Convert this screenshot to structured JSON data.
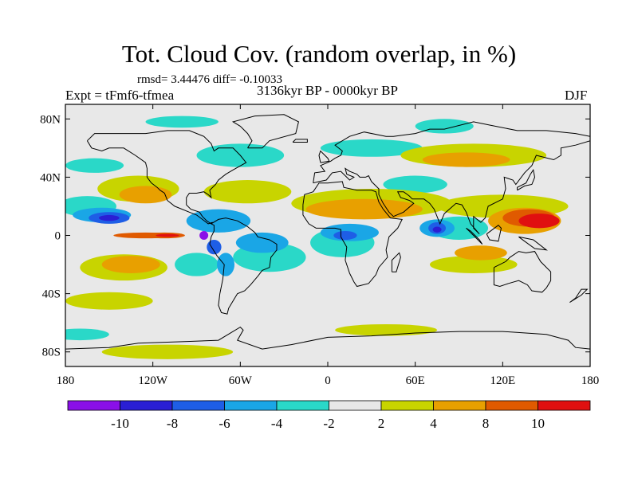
{
  "title": "Tot. Cloud Cov. (random overlap, in %)",
  "stats": "rmsd= 3.44476 diff= -0.10033",
  "experiment": "Expt = tFmf6-tfmea",
  "period": "3136kyr BP - 0000kyr BP",
  "season": "DJF",
  "map": {
    "projection": "cylindrical-equidistant",
    "lon_range": [
      -180,
      180
    ],
    "lat_range": [
      -90,
      90
    ],
    "x_ticks": [
      "180",
      "120W",
      "60W",
      "0",
      "60E",
      "120E",
      "180"
    ],
    "y_ticks": [
      "80N",
      "40N",
      "0",
      "40S",
      "80S"
    ],
    "background_color": "#e8e8e8",
    "coastline_color": "#000000"
  },
  "colorbar": {
    "labels": [
      "-10",
      "-8",
      "-6",
      "-4",
      "-2",
      "2",
      "4",
      "8",
      "10"
    ],
    "colors": [
      "#8a10e8",
      "#2a1fd4",
      "#1e5ee6",
      "#1aa6e6",
      "#2ad8c8",
      "#e8e8e8",
      "#c8d400",
      "#e8a000",
      "#e05a00",
      "#e01010"
    ]
  },
  "anomaly_regions": [
    {
      "level": 2,
      "lon": -130,
      "lat": 32,
      "rx": 28,
      "ry": 9
    },
    {
      "level": 2,
      "lon": -55,
      "lat": 30,
      "rx": 30,
      "ry": 8
    },
    {
      "level": 2,
      "lon": 30,
      "lat": 22,
      "rx": 55,
      "ry": 10
    },
    {
      "level": 2,
      "lon": 120,
      "lat": 20,
      "rx": 45,
      "ry": 8
    },
    {
      "level": 2,
      "lon": 100,
      "lat": 55,
      "rx": 50,
      "ry": 8
    },
    {
      "level": 2,
      "lon": -140,
      "lat": -22,
      "rx": 30,
      "ry": 9
    },
    {
      "level": 2,
      "lon": -150,
      "lat": -45,
      "rx": 30,
      "ry": 6
    },
    {
      "level": 2,
      "lon": 100,
      "lat": -20,
      "rx": 30,
      "ry": 6
    },
    {
      "level": 2,
      "lon": -110,
      "lat": -80,
      "rx": 45,
      "ry": 5
    },
    {
      "level": 2,
      "lon": 40,
      "lat": -65,
      "rx": 35,
      "ry": 4
    },
    {
      "level": 1,
      "lon": -160,
      "lat": 14,
      "rx": 20,
      "ry": 6
    },
    {
      "level": 1,
      "lon": -40,
      "lat": -32,
      "rx": 25,
      "ry": 8
    },
    {
      "level": 1,
      "lon": 60,
      "lat": -42,
      "rx": 35,
      "ry": 6
    },
    {
      "level": 1,
      "lon": 100,
      "lat": 82,
      "rx": 40,
      "ry": 4
    },
    {
      "level": 3,
      "lon": -125,
      "lat": 28,
      "rx": 18,
      "ry": 6
    },
    {
      "level": 3,
      "lon": 25,
      "lat": 18,
      "rx": 40,
      "ry": 7
    },
    {
      "level": 3,
      "lon": 95,
      "lat": 52,
      "rx": 30,
      "ry": 5
    },
    {
      "level": 3,
      "lon": -135,
      "lat": -20,
      "rx": 20,
      "ry": 6
    },
    {
      "level": 3,
      "lon": 105,
      "lat": -12,
      "rx": 18,
      "ry": 5
    },
    {
      "level": 3,
      "lon": 135,
      "lat": 10,
      "rx": 25,
      "ry": 9
    },
    {
      "level": 4,
      "lon": 138,
      "lat": 12,
      "rx": 18,
      "ry": 6
    },
    {
      "level": 4,
      "lon": -125,
      "lat": 0,
      "rx": 22,
      "ry": 2
    },
    {
      "level": 5,
      "lon": 145,
      "lat": 10,
      "rx": 14,
      "ry": 5
    },
    {
      "level": -1,
      "lon": -165,
      "lat": 20,
      "rx": 20,
      "ry": 7
    },
    {
      "level": -1,
      "lon": -60,
      "lat": 55,
      "rx": 30,
      "ry": 8
    },
    {
      "level": -1,
      "lon": 60,
      "lat": 35,
      "rx": 22,
      "ry": 6
    },
    {
      "level": -1,
      "lon": 30,
      "lat": 60,
      "rx": 35,
      "ry": 6
    },
    {
      "level": -1,
      "lon": -160,
      "lat": 48,
      "rx": 20,
      "ry": 5
    },
    {
      "level": -1,
      "lon": -40,
      "lat": -15,
      "rx": 25,
      "ry": 10
    },
    {
      "level": -1,
      "lon": -90,
      "lat": -20,
      "rx": 15,
      "ry": 8
    },
    {
      "level": -1,
      "lon": 90,
      "lat": 5,
      "rx": 20,
      "ry": 8
    },
    {
      "level": -1,
      "lon": 80,
      "lat": 75,
      "rx": 20,
      "ry": 5
    },
    {
      "level": -1,
      "lon": -100,
      "lat": 78,
      "rx": 25,
      "ry": 4
    },
    {
      "level": -1,
      "lon": -170,
      "lat": -68,
      "rx": 20,
      "ry": 4
    },
    {
      "level": -1,
      "lon": 10,
      "lat": -5,
      "rx": 22,
      "ry": 10
    },
    {
      "level": -2,
      "lon": -155,
      "lat": 14,
      "rx": 20,
      "ry": 5
    },
    {
      "level": -2,
      "lon": -75,
      "lat": 10,
      "rx": 22,
      "ry": 8
    },
    {
      "level": -2,
      "lon": -45,
      "lat": -5,
      "rx": 18,
      "ry": 7
    },
    {
      "level": -2,
      "lon": 15,
      "lat": 2,
      "rx": 20,
      "ry": 6
    },
    {
      "level": -2,
      "lon": 75,
      "lat": 5,
      "rx": 12,
      "ry": 6
    },
    {
      "level": -2,
      "lon": -70,
      "lat": -20,
      "rx": 6,
      "ry": 8
    },
    {
      "level": -3,
      "lon": -150,
      "lat": 12,
      "rx": 14,
      "ry": 4
    },
    {
      "level": -3,
      "lon": 12,
      "lat": 0,
      "rx": 8,
      "ry": 3
    },
    {
      "level": -3,
      "lon": 75,
      "lat": 5,
      "rx": 6,
      "ry": 4
    },
    {
      "level": -3,
      "lon": -78,
      "lat": -8,
      "rx": 5,
      "ry": 5
    },
    {
      "level": -4,
      "lon": -150,
      "lat": 12,
      "rx": 7,
      "ry": 2
    },
    {
      "level": -4,
      "lon": 75,
      "lat": 4,
      "rx": 3,
      "ry": 2
    },
    {
      "level": -5,
      "lon": -85,
      "lat": 0,
      "rx": 3,
      "ry": 3
    },
    {
      "level": 4,
      "lon": -112,
      "lat": 0,
      "rx": 14,
      "ry": 2
    },
    {
      "level": 5,
      "lon": -110,
      "lat": 0,
      "rx": 8,
      "ry": 1
    }
  ]
}
